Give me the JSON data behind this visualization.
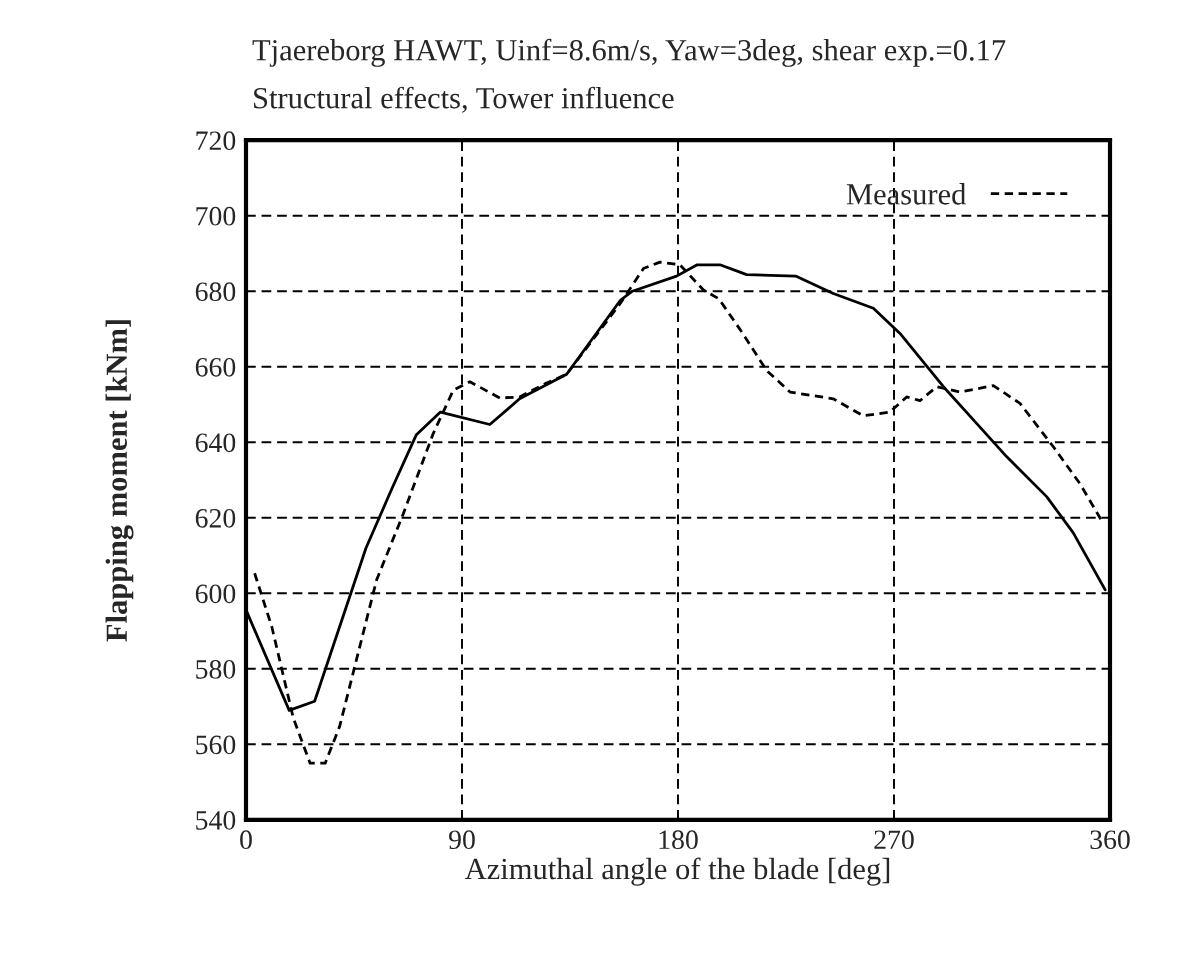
{
  "chart_data": {
    "type": "line",
    "title": "Tjaereborg HAWT, Uinf=8.6m/s, Yaw=3deg, shear exp.=0.17",
    "subtitle": "Structural effects, Tower influence",
    "xlabel": "Azimuthal angle of the blade [deg]",
    "ylabel": "Flapping moment [kNm]",
    "xlim": [
      0,
      360
    ],
    "xticks": [
      0,
      90,
      180,
      270,
      360
    ],
    "ylim": [
      540,
      720
    ],
    "yticks": [
      540,
      560,
      580,
      600,
      620,
      640,
      660,
      680,
      700,
      720
    ],
    "grid": true,
    "legend": "top right",
    "series": [
      {
        "color": "#000000",
        "line_style": "solid",
        "x": [
          0,
          18,
          28.6,
          50,
          61,
          71,
          81,
          101.6,
          114,
          133.6,
          156,
          161,
          179.4,
          188,
          197.5,
          208.6,
          229,
          244.7,
          261.4,
          272.5,
          290.6,
          303,
          316.9,
          333.6,
          344.7,
          358
        ],
        "values": [
          595.6,
          569,
          571.4,
          612,
          628,
          642,
          648,
          644.7,
          651.5,
          658,
          677.6,
          680,
          684,
          687,
          687,
          684.4,
          684,
          679.4,
          675.5,
          668.8,
          654.7,
          646,
          636.2,
          625.6,
          616,
          600.9
        ]
      },
      {
        "name": "Measured",
        "color": "#000000",
        "line_style": "dashed",
        "x": [
          3.6,
          10.8,
          19.7,
          26.7,
          33,
          39,
          54.4,
          65.5,
          78,
          86.4,
          93.3,
          105.8,
          114,
          125,
          133.6,
          156,
          165.6,
          172.5,
          180.8,
          190.6,
          197,
          207,
          216.9,
          226.7,
          244.7,
          257.2,
          268.3,
          275.3,
          280.8,
          287.8,
          297.5,
          311.4,
          322.5,
          336.4,
          347.5,
          357.2
        ],
        "values": [
          605.3,
          591,
          567,
          555,
          555,
          564.7,
          603.5,
          621,
          642.3,
          653.8,
          656,
          651.7,
          652,
          655.6,
          658,
          676.8,
          686,
          687.7,
          687,
          680.3,
          678,
          668.8,
          659,
          653.3,
          651.5,
          647,
          648,
          652,
          651,
          654.7,
          653.3,
          655,
          650.3,
          638.8,
          629,
          618.5
        ]
      }
    ]
  }
}
